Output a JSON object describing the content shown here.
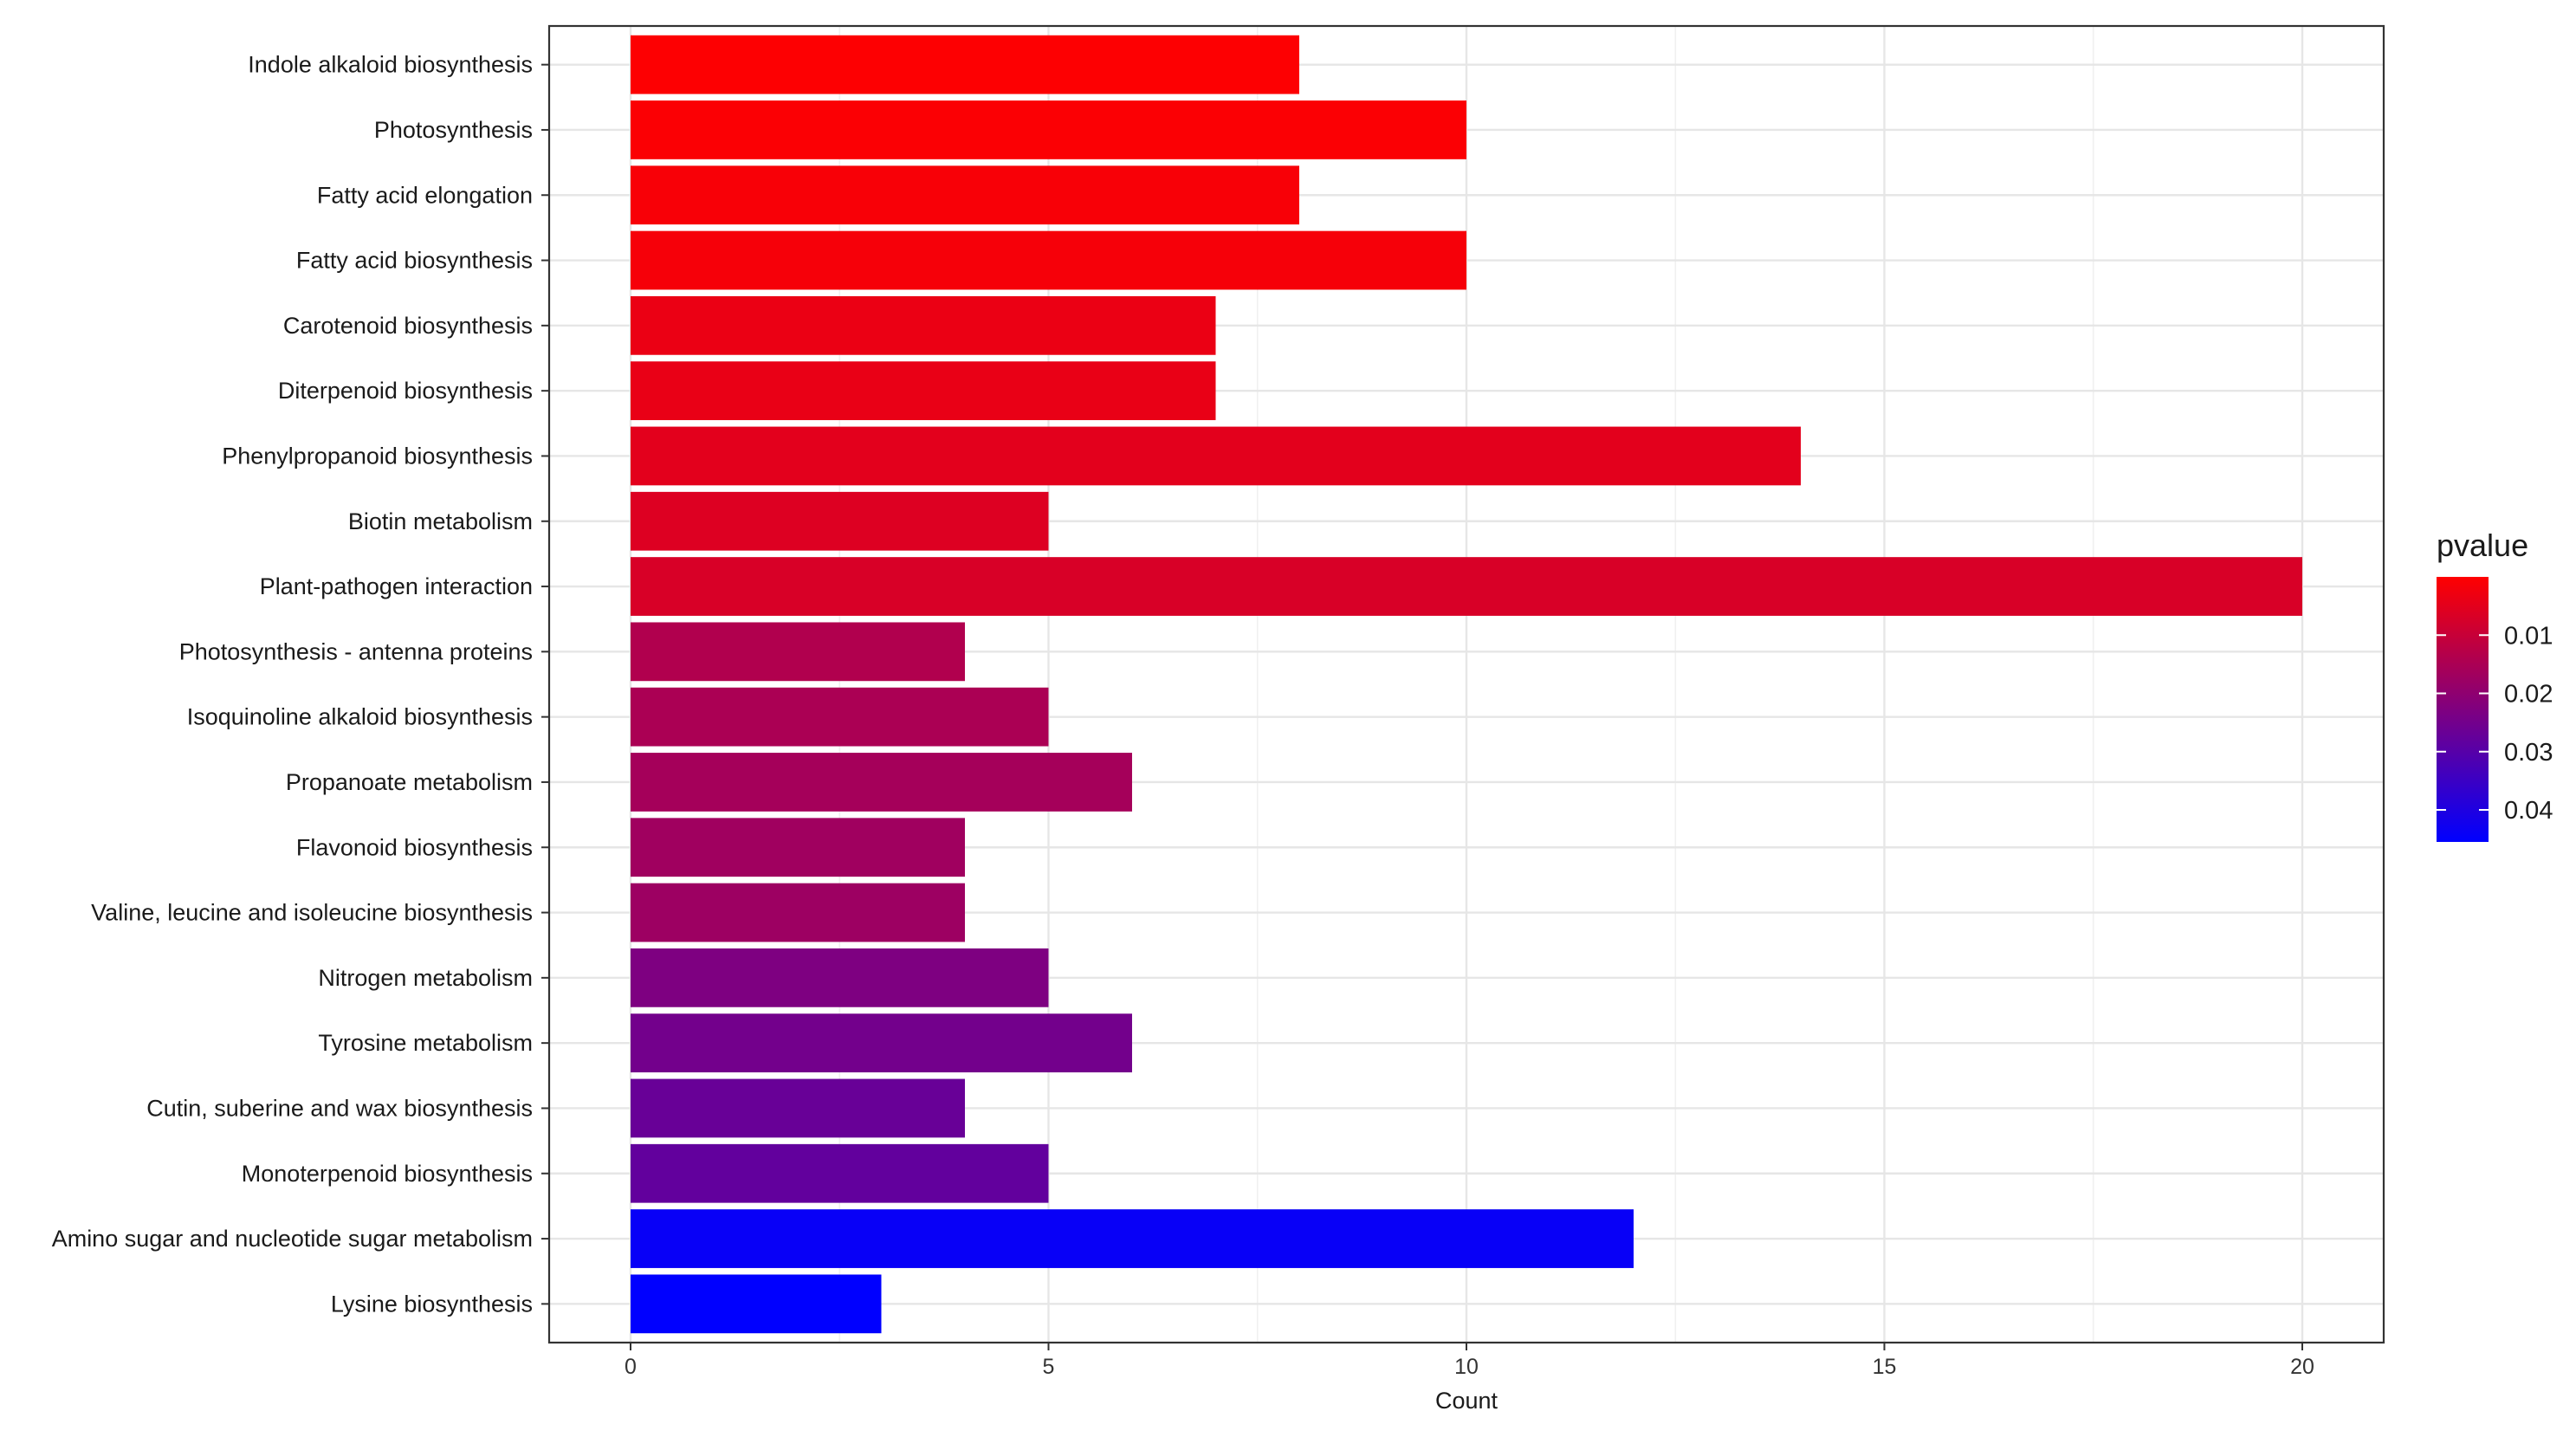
{
  "chart_data": {
    "type": "bar",
    "orientation": "horizontal",
    "categories": [
      "Indole alkaloid biosynthesis",
      "Photosynthesis",
      "Fatty acid elongation",
      "Fatty acid biosynthesis",
      "Carotenoid biosynthesis",
      "Diterpenoid biosynthesis",
      "Phenylpropanoid biosynthesis",
      "Biotin metabolism",
      "Plant-pathogen interaction",
      "Photosynthesis - antenna proteins",
      "Isoquinoline alkaloid biosynthesis",
      "Propanoate metabolism",
      "Flavonoid biosynthesis",
      "Valine, leucine and isoleucine biosynthesis",
      "Nitrogen metabolism",
      "Tyrosine metabolism",
      "Cutin, suberine and wax biosynthesis",
      "Monoterpenoid biosynthesis",
      "Amino sugar and nucleotide sugar metabolism",
      "Lysine biosynthesis"
    ],
    "values": [
      8,
      10,
      8,
      10,
      7,
      7,
      14,
      5,
      20,
      4,
      5,
      6,
      4,
      4,
      5,
      6,
      4,
      5,
      12,
      3
    ],
    "pvalues": [
      0.0004,
      0.0008,
      0.0012,
      0.0016,
      0.0035,
      0.004,
      0.005,
      0.006,
      0.007,
      0.014,
      0.015,
      0.016,
      0.017,
      0.0175,
      0.023,
      0.025,
      0.027,
      0.028,
      0.044,
      0.047
    ],
    "xlabel": "Count",
    "ylabel": "",
    "xlim": [
      0,
      21
    ],
    "xticks": [
      0,
      5,
      10,
      15,
      20
    ],
    "grid": true,
    "legend": {
      "title": "pvalue",
      "position": "right",
      "ticks": [
        0.01,
        0.02,
        0.03,
        0.04
      ],
      "tick_labels": [
        "0.01",
        "0.02",
        "0.03",
        "0.04"
      ],
      "range": [
        0.0,
        0.0455
      ],
      "color_low_pvalue": "#ff0000",
      "color_high_pvalue": "#0000ff"
    }
  }
}
